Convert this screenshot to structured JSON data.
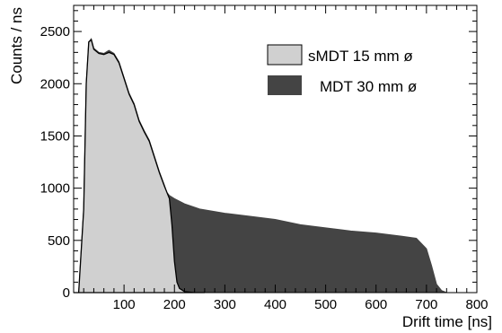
{
  "chart_data": {
    "type": "area",
    "xlabel": "Drift time [ns]",
    "ylabel": "Counts / ns",
    "xlim": [
      0,
      800
    ],
    "ylim": [
      0,
      2750
    ],
    "x_ticks": [
      100,
      200,
      300,
      400,
      500,
      600,
      700,
      800
    ],
    "y_ticks": [
      0,
      500,
      1000,
      1500,
      2000,
      2500
    ],
    "grid": false,
    "legend_position": "top-right",
    "series": [
      {
        "name": "sMDT 15 mm ø",
        "color": "#d0d0d0",
        "x": [
          0,
          10,
          20,
          25,
          30,
          35,
          40,
          50,
          60,
          70,
          80,
          90,
          100,
          110,
          120,
          130,
          140,
          150,
          160,
          170,
          180,
          190,
          195,
          200,
          205,
          210,
          220,
          240,
          260
        ],
        "values": [
          0,
          0,
          800,
          2000,
          2400,
          2420,
          2330,
          2290,
          2280,
          2300,
          2280,
          2200,
          2050,
          1900,
          1800,
          1640,
          1540,
          1450,
          1300,
          1150,
          1020,
          900,
          650,
          300,
          100,
          40,
          10,
          0,
          0
        ]
      },
      {
        "name": "MDT 30 mm ø",
        "color": "#444444",
        "x": [
          0,
          10,
          20,
          25,
          30,
          35,
          40,
          50,
          60,
          70,
          80,
          90,
          100,
          110,
          120,
          130,
          140,
          150,
          160,
          170,
          180,
          185,
          190,
          200,
          220,
          250,
          300,
          350,
          400,
          450,
          500,
          550,
          600,
          650,
          680,
          700,
          710,
          720,
          730,
          740,
          760
        ],
        "values": [
          0,
          0,
          800,
          2000,
          2400,
          2430,
          2340,
          2300,
          2290,
          2320,
          2290,
          2210,
          2060,
          1910,
          1810,
          1650,
          1550,
          1460,
          1310,
          1160,
          1030,
          960,
          930,
          900,
          850,
          800,
          760,
          730,
          700,
          650,
          620,
          590,
          570,
          540,
          520,
          420,
          260,
          80,
          20,
          0,
          0
        ]
      }
    ]
  }
}
